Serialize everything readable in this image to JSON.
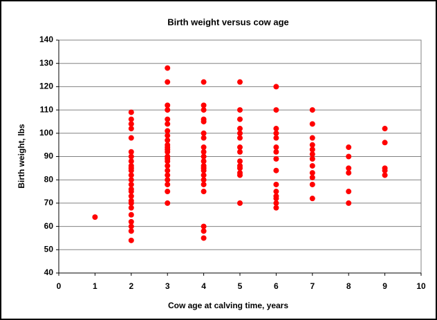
{
  "chart_data": {
    "type": "scatter",
    "title": "Birth weight versus cow age",
    "x_label": "Cow age at calving time, years",
    "y_label": "Birth weight, lbs",
    "color": "#ff0000",
    "grid": true,
    "xlim": [
      0,
      10
    ],
    "xticks": [
      0,
      1,
      2,
      3,
      4,
      5,
      6,
      7,
      8,
      9,
      10
    ],
    "ylim": [
      40,
      140
    ],
    "yticks": [
      40,
      50,
      60,
      70,
      80,
      90,
      100,
      110,
      120,
      130,
      140
    ],
    "x": [
      1,
      2,
      2,
      2,
      2,
      2,
      2,
      2,
      2,
      2,
      2,
      2,
      2,
      2,
      2,
      2,
      2,
      2,
      2,
      2,
      2,
      2,
      2,
      2,
      2,
      2,
      3,
      3,
      3,
      3,
      3,
      3,
      3,
      3,
      3,
      3,
      3,
      3,
      3,
      3,
      3,
      3,
      3,
      3,
      3,
      3,
      3,
      3,
      3,
      4,
      4,
      4,
      4,
      4,
      4,
      4,
      4,
      4,
      4,
      4,
      4,
      4,
      4,
      4,
      4,
      4,
      4,
      4,
      4,
      4,
      5,
      5,
      5,
      5,
      5,
      5,
      5,
      5,
      5,
      5,
      5,
      5,
      5,
      5,
      6,
      6,
      6,
      6,
      6,
      6,
      6,
      6,
      6,
      6,
      6,
      6,
      6,
      6,
      6,
      7,
      7,
      7,
      7,
      7,
      7,
      7,
      7,
      7,
      7,
      7,
      7,
      8,
      8,
      8,
      8,
      8,
      8,
      9,
      9,
      9,
      9,
      9
    ],
    "values": [
      64,
      109,
      106,
      104,
      102,
      98,
      92,
      90,
      88,
      86,
      85,
      84,
      82,
      80,
      78,
      76,
      75,
      73,
      71,
      70,
      68,
      65,
      62,
      60,
      58,
      54,
      128,
      122,
      112,
      110,
      106,
      104,
      101,
      99,
      97,
      95,
      94,
      93,
      92,
      90,
      89,
      88,
      86,
      84,
      82,
      80,
      78,
      75,
      70,
      122,
      112,
      110,
      106,
      105,
      100,
      98,
      94,
      92,
      90,
      88,
      86,
      85,
      84,
      82,
      80,
      78,
      75,
      60,
      58,
      55,
      122,
      110,
      106,
      102,
      100,
      98,
      94,
      92,
      88,
      86,
      85,
      83,
      82,
      70,
      120,
      110,
      102,
      100,
      98,
      94,
      92,
      89,
      84,
      78,
      75,
      73,
      72,
      70,
      68,
      110,
      104,
      98,
      95,
      93,
      91,
      89,
      86,
      83,
      81,
      78,
      72,
      94,
      90,
      85,
      83,
      75,
      70,
      102,
      96,
      85,
      84,
      82
    ]
  }
}
